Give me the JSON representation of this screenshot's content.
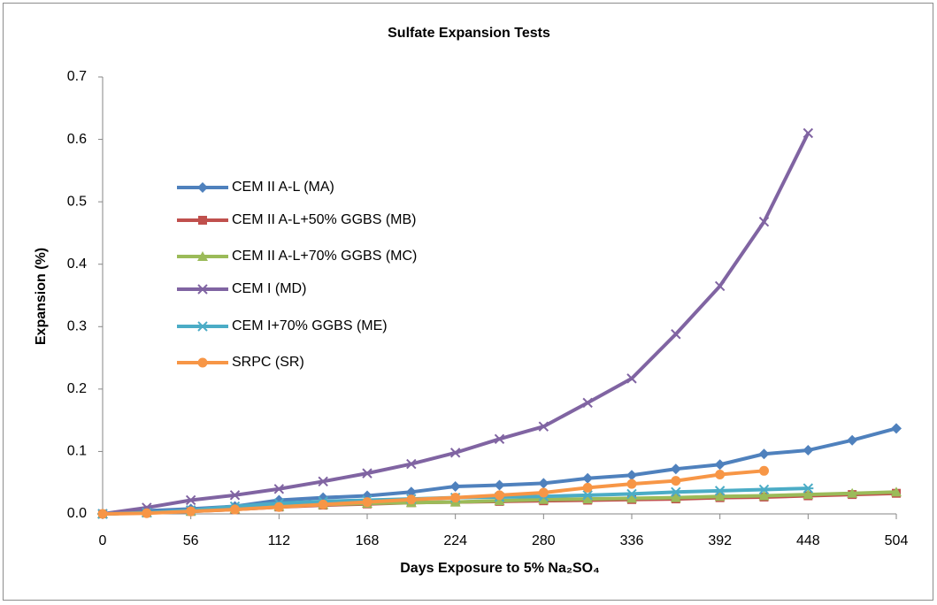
{
  "chart_data": {
    "type": "line",
    "title": "Sulfate Expansion Tests",
    "x_label": "Days Exposure to 5% Na₂SO₄",
    "y_label": "Expansion (%)",
    "x": [
      0,
      28,
      56,
      84,
      112,
      140,
      168,
      196,
      224,
      252,
      280,
      308,
      336,
      364,
      392,
      420,
      448,
      476,
      504
    ],
    "xlim": [
      0,
      504
    ],
    "xticks": [
      0,
      56,
      112,
      168,
      224,
      280,
      336,
      392,
      448,
      504
    ],
    "ylim": [
      0,
      0.7
    ],
    "yticks": [
      {
        "value": 0,
        "label": "0.0"
      },
      0.1,
      0.2,
      0.3,
      0.4,
      0.5,
      0.6,
      0.7
    ],
    "grid": false,
    "legend": "left",
    "series": [
      {
        "name": "CEM II A-L (MA)",
        "color": "#4f81bd",
        "marker": "diamond",
        "values": [
          0,
          0.005,
          0.008,
          0.012,
          0.022,
          0.026,
          0.029,
          0.035,
          0.044,
          0.046,
          0.049,
          0.057,
          0.062,
          0.072,
          0.079,
          0.096,
          0.102,
          0.118,
          0.137
        ]
      },
      {
        "name": "CEM II A-L+50% GGBS (MB)",
        "color": "#c0504d",
        "marker": "square",
        "values": [
          0,
          0.002,
          0.004,
          0.007,
          0.011,
          0.014,
          0.016,
          0.018,
          0.019,
          0.02,
          0.021,
          0.022,
          0.023,
          0.024,
          0.026,
          0.027,
          0.029,
          0.031,
          0.033
        ]
      },
      {
        "name": "CEM II A-L+70% GGBS (MC)",
        "color": "#9bbb59",
        "marker": "triangle",
        "values": [
          0,
          0.002,
          0.004,
          0.008,
          0.012,
          0.015,
          0.017,
          0.018,
          0.019,
          0.021,
          0.023,
          0.024,
          0.025,
          0.026,
          0.028,
          0.029,
          0.031,
          0.033,
          0.035
        ]
      },
      {
        "name": "CEM I (MD)",
        "color": "#8064a2",
        "marker": "x",
        "values": [
          0,
          0.01,
          0.022,
          0.03,
          0.04,
          0.052,
          0.065,
          0.08,
          0.098,
          0.12,
          0.14,
          0.178,
          0.217,
          0.288,
          0.365,
          0.468,
          0.61,
          null,
          null
        ]
      },
      {
        "name": "CEM I+70% GGBS (ME)",
        "color": "#4bacc6",
        "marker": "star",
        "values": [
          0,
          0.002,
          0.006,
          0.012,
          0.017,
          0.02,
          0.022,
          0.024,
          0.026,
          0.027,
          0.028,
          0.03,
          0.032,
          0.035,
          0.037,
          0.039,
          0.041,
          null,
          null
        ]
      },
      {
        "name": "SRPC (SR)",
        "color": "#f79646",
        "marker": "circle",
        "values": [
          0,
          0.001,
          0.004,
          0.007,
          0.011,
          0.015,
          0.019,
          0.023,
          0.026,
          0.03,
          0.034,
          0.042,
          0.048,
          0.053,
          0.063,
          0.069,
          null,
          null,
          null
        ]
      }
    ]
  }
}
